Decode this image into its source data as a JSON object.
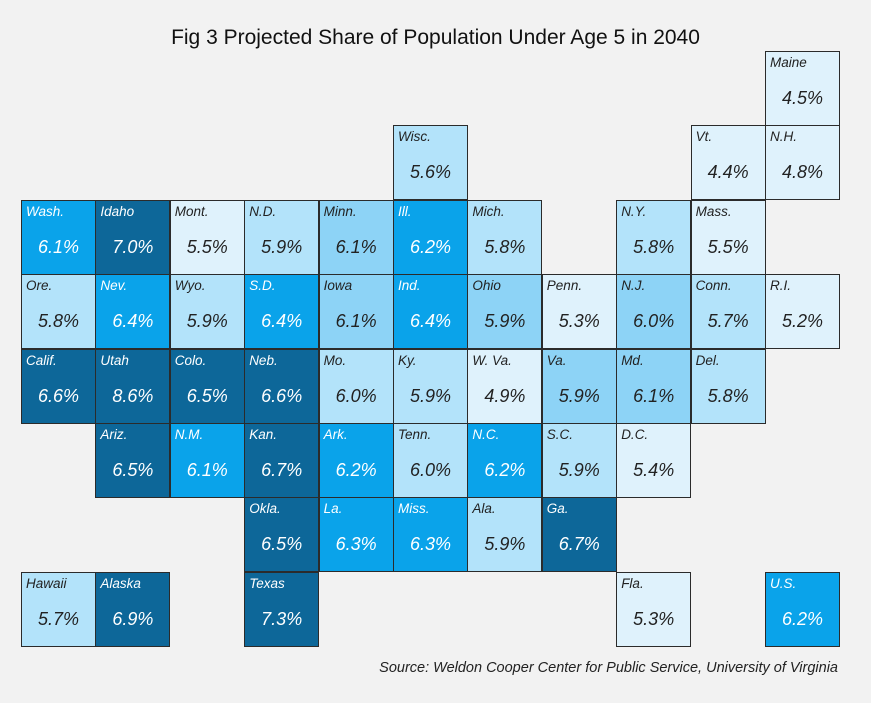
{
  "chart_data": {
    "type": "heatmap",
    "title": "Fig 3 Projected Share of Population Under Age 5 in 2040",
    "source": "Source: Weldon Cooper Center for Public Service, University of Virginia",
    "colors": {
      "background": "#f2f2f2",
      "bins": [
        "#dff2fc",
        "#b3e3fa",
        "#8dd3f6",
        "#0aa3ea",
        "#0d6799"
      ]
    },
    "tiles": [
      {
        "label": "Maine",
        "value": "4.5%",
        "row": 0,
        "col": 10,
        "bin": 0
      },
      {
        "label": "Wisc.",
        "value": "5.6%",
        "row": 1,
        "col": 5,
        "bin": 1
      },
      {
        "label": "Vt.",
        "value": "4.4%",
        "row": 1,
        "col": 9,
        "bin": 0
      },
      {
        "label": "N.H.",
        "value": "4.8%",
        "row": 1,
        "col": 10,
        "bin": 0
      },
      {
        "label": "Wash.",
        "value": "6.1%",
        "row": 2,
        "col": 0,
        "bin": 3
      },
      {
        "label": "Idaho",
        "value": "7.0%",
        "row": 2,
        "col": 1,
        "bin": 4
      },
      {
        "label": "Mont.",
        "value": "5.5%",
        "row": 2,
        "col": 2,
        "bin": 0
      },
      {
        "label": "N.D.",
        "value": "5.9%",
        "row": 2,
        "col": 3,
        "bin": 1
      },
      {
        "label": "Minn.",
        "value": "6.1%",
        "row": 2,
        "col": 4,
        "bin": 2
      },
      {
        "label": "Ill.",
        "value": "6.2%",
        "row": 2,
        "col": 5,
        "bin": 3
      },
      {
        "label": "Mich.",
        "value": "5.8%",
        "row": 2,
        "col": 6,
        "bin": 1
      },
      {
        "label": "N.Y.",
        "value": "5.8%",
        "row": 2,
        "col": 8,
        "bin": 1
      },
      {
        "label": "Mass.",
        "value": "5.5%",
        "row": 2,
        "col": 9,
        "bin": 0
      },
      {
        "label": "Ore.",
        "value": "5.8%",
        "row": 3,
        "col": 0,
        "bin": 1
      },
      {
        "label": "Nev.",
        "value": "6.4%",
        "row": 3,
        "col": 1,
        "bin": 3
      },
      {
        "label": "Wyo.",
        "value": "5.9%",
        "row": 3,
        "col": 2,
        "bin": 1
      },
      {
        "label": "S.D.",
        "value": "6.4%",
        "row": 3,
        "col": 3,
        "bin": 3
      },
      {
        "label": "Iowa",
        "value": "6.1%",
        "row": 3,
        "col": 4,
        "bin": 2
      },
      {
        "label": "Ind.",
        "value": "6.4%",
        "row": 3,
        "col": 5,
        "bin": 3
      },
      {
        "label": "Ohio",
        "value": "5.9%",
        "row": 3,
        "col": 6,
        "bin": 2
      },
      {
        "label": "Penn.",
        "value": "5.3%",
        "row": 3,
        "col": 7,
        "bin": 0
      },
      {
        "label": "N.J.",
        "value": "6.0%",
        "row": 3,
        "col": 8,
        "bin": 2
      },
      {
        "label": "Conn.",
        "value": "5.7%",
        "row": 3,
        "col": 9,
        "bin": 1
      },
      {
        "label": "R.I.",
        "value": "5.2%",
        "row": 3,
        "col": 10,
        "bin": 0
      },
      {
        "label": "Calif.",
        "value": "6.6%",
        "row": 4,
        "col": 0,
        "bin": 4
      },
      {
        "label": "Utah",
        "value": "8.6%",
        "row": 4,
        "col": 1,
        "bin": 4
      },
      {
        "label": "Colo.",
        "value": "6.5%",
        "row": 4,
        "col": 2,
        "bin": 4
      },
      {
        "label": "Neb.",
        "value": "6.6%",
        "row": 4,
        "col": 3,
        "bin": 4
      },
      {
        "label": "Mo.",
        "value": "6.0%",
        "row": 4,
        "col": 4,
        "bin": 1
      },
      {
        "label": "Ky.",
        "value": "5.9%",
        "row": 4,
        "col": 5,
        "bin": 1
      },
      {
        "label": "W. Va.",
        "value": "4.9%",
        "row": 4,
        "col": 6,
        "bin": 0
      },
      {
        "label": "Va.",
        "value": "5.9%",
        "row": 4,
        "col": 7,
        "bin": 2
      },
      {
        "label": "Md.",
        "value": "6.1%",
        "row": 4,
        "col": 8,
        "bin": 2
      },
      {
        "label": "Del.",
        "value": "5.8%",
        "row": 4,
        "col": 9,
        "bin": 1
      },
      {
        "label": "Ariz.",
        "value": "6.5%",
        "row": 5,
        "col": 1,
        "bin": 4
      },
      {
        "label": "N.M.",
        "value": "6.1%",
        "row": 5,
        "col": 2,
        "bin": 3
      },
      {
        "label": "Kan.",
        "value": "6.7%",
        "row": 5,
        "col": 3,
        "bin": 4
      },
      {
        "label": "Ark.",
        "value": "6.2%",
        "row": 5,
        "col": 4,
        "bin": 3
      },
      {
        "label": "Tenn.",
        "value": "6.0%",
        "row": 5,
        "col": 5,
        "bin": 1
      },
      {
        "label": "N.C.",
        "value": "6.2%",
        "row": 5,
        "col": 6,
        "bin": 3
      },
      {
        "label": "S.C.",
        "value": "5.9%",
        "row": 5,
        "col": 7,
        "bin": 1
      },
      {
        "label": "D.C.",
        "value": "5.4%",
        "row": 5,
        "col": 8,
        "bin": 0
      },
      {
        "label": "Okla.",
        "value": "6.5%",
        "row": 6,
        "col": 3,
        "bin": 4
      },
      {
        "label": "La.",
        "value": "6.3%",
        "row": 6,
        "col": 4,
        "bin": 3
      },
      {
        "label": "Miss.",
        "value": "6.3%",
        "row": 6,
        "col": 5,
        "bin": 3
      },
      {
        "label": "Ala.",
        "value": "5.9%",
        "row": 6,
        "col": 6,
        "bin": 1
      },
      {
        "label": "Ga.",
        "value": "6.7%",
        "row": 6,
        "col": 7,
        "bin": 4
      },
      {
        "label": "Hawaii",
        "value": "5.7%",
        "row": 7,
        "col": 0,
        "bin": 1
      },
      {
        "label": "Alaska",
        "value": "6.9%",
        "row": 7,
        "col": 1,
        "bin": 4
      },
      {
        "label": "Texas",
        "value": "7.3%",
        "row": 7,
        "col": 3,
        "bin": 4
      },
      {
        "label": "Fla.",
        "value": "5.3%",
        "row": 7,
        "col": 8,
        "bin": 0
      },
      {
        "label": "U.S.",
        "value": "6.2%",
        "row": 7,
        "col": 10,
        "bin": 3
      }
    ]
  }
}
